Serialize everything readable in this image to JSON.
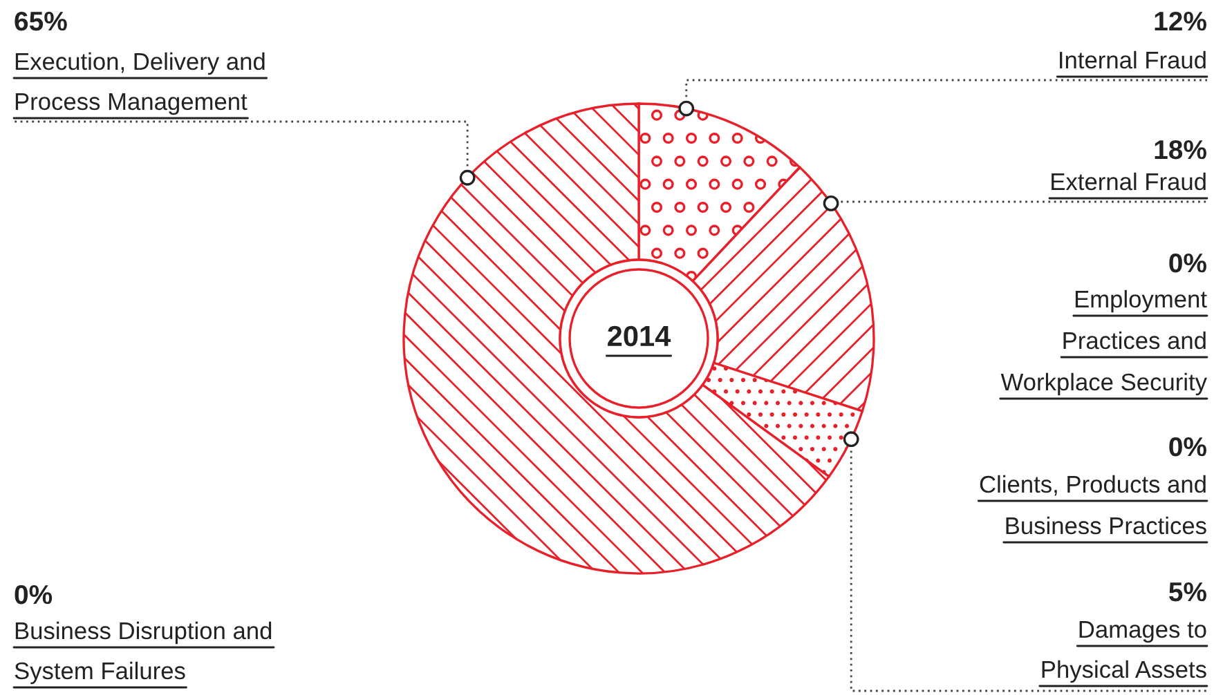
{
  "chart_data": {
    "type": "donut",
    "title": "2014",
    "categories": [
      "Internal Fraud",
      "External Fraud",
      "Employment\nPractices and\nWorkplace Security",
      "Clients, Products and\nBusiness Practices",
      "Damages to\nPhysical Assets",
      "Business Disruption and\nSystem Failures",
      "Execution, Delivery and\nProcess Management"
    ],
    "values": [
      12,
      18,
      0,
      0,
      5,
      0,
      65
    ],
    "value_labels": [
      "12%",
      "18%",
      "0%",
      "0%",
      "5%",
      "0%",
      "65%"
    ],
    "colors": [
      "#e8202a",
      "#e8202a",
      "#e8202a",
      "#e8202a",
      "#e8202a",
      "#e8202a",
      "#e8202a"
    ]
  }
}
